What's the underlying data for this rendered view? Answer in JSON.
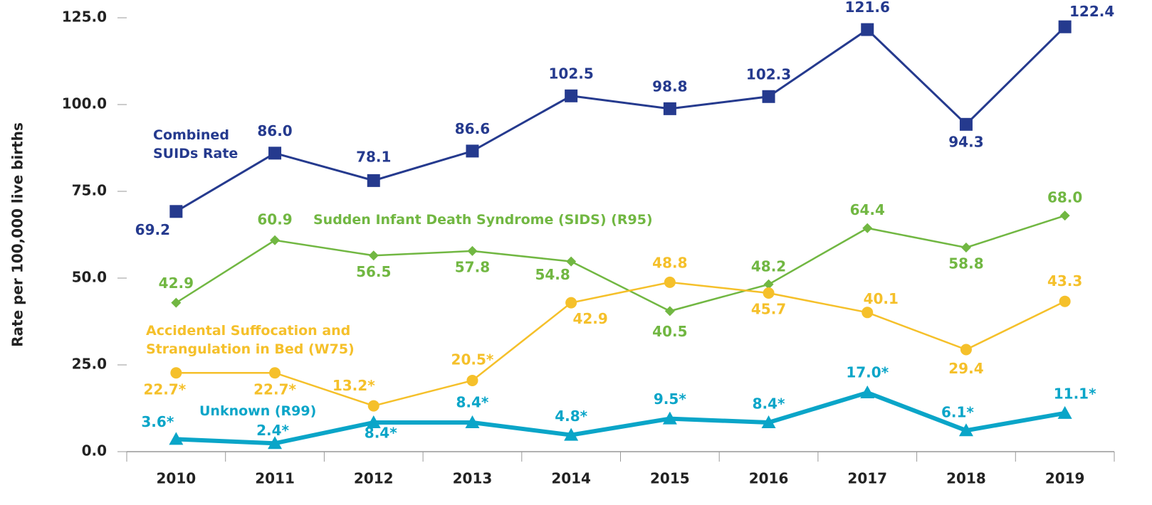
{
  "chart_data": {
    "type": "line",
    "y_label": "Rate per 100,000 live births",
    "categories": [
      "2010",
      "2011",
      "2012",
      "2013",
      "2014",
      "2015",
      "2016",
      "2017",
      "2018",
      "2019"
    ],
    "ylim": [
      0,
      125
    ],
    "yticks": [
      {
        "value": 0,
        "label": "0.0"
      },
      {
        "value": 25,
        "label": "25.0"
      },
      {
        "value": 50,
        "label": "50.0"
      },
      {
        "value": 75,
        "label": "75.0"
      },
      {
        "value": 100,
        "label": "100.0"
      },
      {
        "value": 125,
        "label": "125.0"
      }
    ],
    "series": [
      {
        "name": "Combined SUIDs Rate",
        "color": "#253a8e",
        "marker": "square",
        "values": [
          69.2,
          86.0,
          78.1,
          86.6,
          102.5,
          98.8,
          102.3,
          121.6,
          94.3,
          122.4
        ],
        "value_labels": [
          "69.2",
          "86.0",
          "78.1",
          "86.6",
          "102.5",
          "98.8",
          "102.3",
          "121.6",
          "94.3",
          "122.4"
        ]
      },
      {
        "name": "Sudden Infant Death Syndrome (SIDS) (R95)",
        "color": "#71b742",
        "marker": "diamond",
        "values": [
          42.9,
          60.9,
          56.5,
          57.8,
          54.8,
          40.5,
          48.2,
          64.4,
          58.8,
          68.0
        ],
        "value_labels": [
          "42.9",
          "60.9",
          "56.5",
          "57.8",
          "54.8",
          "40.5",
          "48.2",
          "64.4",
          "58.8",
          "68.0"
        ]
      },
      {
        "name": "Accidental Suffocation and Strangulation in Bed (W75)",
        "color": "#f5c02a",
        "marker": "circle",
        "values": [
          22.7,
          22.7,
          13.2,
          20.5,
          42.9,
          48.8,
          45.7,
          40.1,
          29.4,
          43.3
        ],
        "value_labels": [
          "22.7*",
          "22.7*",
          "13.2*",
          "20.5*",
          "42.9",
          "48.8",
          "45.7",
          "40.1",
          "29.4",
          "43.3"
        ]
      },
      {
        "name": "Unknown (R99)",
        "color": "#0aa5c8",
        "marker": "triangle",
        "values": [
          3.6,
          2.4,
          8.4,
          8.4,
          4.8,
          9.5,
          8.4,
          17.0,
          6.1,
          11.1
        ],
        "value_labels": [
          "3.6*",
          "2.4*",
          "8.4*",
          "8.4*",
          "4.8*",
          "9.5*",
          "8.4*",
          "17.0*",
          "6.1*",
          "11.1*"
        ]
      }
    ]
  }
}
